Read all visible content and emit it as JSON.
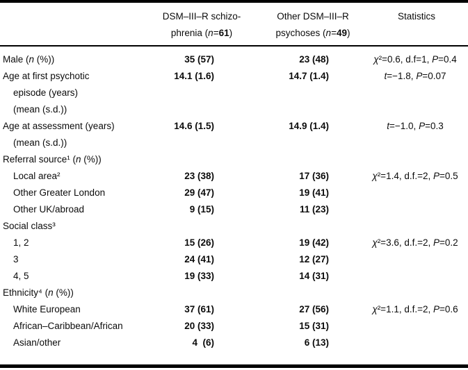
{
  "table": {
    "header": {
      "col2_lines": [
        "DSM–III–R schizo-",
        "phrenia (n=61)"
      ],
      "col3_lines": [
        "Other DSM–III–R",
        "psychoses (n=49)"
      ],
      "statistics_label": "Statistics"
    },
    "rows": [
      {
        "label": [
          "Male (n (%))"
        ],
        "indent": false,
        "v1": "35 (57)",
        "v2": "23 (48)",
        "stats": "χ²=0.6, d.f=1, P=0.4"
      },
      {
        "label": [
          "Age at first psychotic",
          "episode (years)",
          "(mean (s.d.))"
        ],
        "indent": false,
        "v1": "14.1 (1.6)",
        "v2": "14.7 (1.4)",
        "stats": "t=−1.8, P=0.07"
      },
      {
        "label": [
          "Age at assessment (years)",
          "(mean (s.d.))"
        ],
        "indent": false,
        "v1": "14.6 (1.5)",
        "v2": "14.9 (1.4)",
        "stats": "t=−1.0, P=0.3"
      },
      {
        "label": [
          "Referral source¹ (n (%))"
        ],
        "indent": false,
        "section": true,
        "v1": "",
        "v2": "",
        "stats": ""
      },
      {
        "label": [
          "Local area²"
        ],
        "indent": true,
        "v1": "23 (38)",
        "v2": "17 (36)",
        "stats": "χ²=1.4, d.f.=2, P=0.5"
      },
      {
        "label": [
          "Other Greater London"
        ],
        "indent": true,
        "v1": "29 (47)",
        "v2": "19 (41)",
        "stats": ""
      },
      {
        "label": [
          "Other UK/abroad"
        ],
        "indent": true,
        "v1": "9 (15)",
        "v2": "11 (23)",
        "stats": ""
      },
      {
        "label": [
          "Social class³"
        ],
        "indent": false,
        "section": true,
        "v1": "",
        "v2": "",
        "stats": ""
      },
      {
        "label": [
          "1, 2"
        ],
        "indent": true,
        "v1": "15 (26)",
        "v2": "19 (42)",
        "stats": "χ²=3.6, d.f.=2, P=0.2"
      },
      {
        "label": [
          "3"
        ],
        "indent": true,
        "v1": "24 (41)",
        "v2": "12 (27)",
        "stats": ""
      },
      {
        "label": [
          "4, 5"
        ],
        "indent": true,
        "v1": "19 (33)",
        "v2": "14 (31)",
        "stats": ""
      },
      {
        "label": [
          "Ethnicity⁴ (n (%))"
        ],
        "indent": false,
        "section": true,
        "v1": "",
        "v2": "",
        "stats": ""
      },
      {
        "label": [
          "White European"
        ],
        "indent": true,
        "v1": "37 (61)",
        "v2": "27 (56)",
        "stats": "χ²=1.1, d.f.=2, P=0.6"
      },
      {
        "label": [
          "African–Caribbean/African"
        ],
        "indent": true,
        "v1": "20 (33)",
        "v2": "15 (31)",
        "stats": ""
      },
      {
        "label": [
          "Asian/other"
        ],
        "indent": true,
        "v1": "4  (6)",
        "v2": "6 (13)",
        "stats": ""
      }
    ]
  }
}
